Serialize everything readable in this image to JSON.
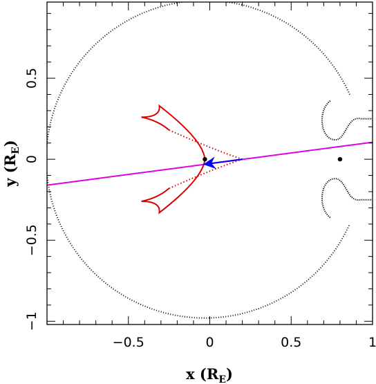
{
  "chart_data": {
    "type": "scatter",
    "xlabel_main": "x (R",
    "xlabel_sub": "E",
    "xlabel_close": ")",
    "ylabel_main": "y (R",
    "ylabel_sub": "E",
    "ylabel_close": ")",
    "xlim": [
      -1.0,
      1.0
    ],
    "ylim": [
      -1.02,
      0.97
    ],
    "x_ticks": [
      -0.5,
      0,
      0.5,
      1
    ],
    "x_tick_labels": [
      "−0.5",
      "0",
      "0.5",
      "1"
    ],
    "y_ticks": [
      -1,
      -0.5,
      0,
      0.5
    ],
    "y_tick_labels": [
      "−1",
      "−0.5",
      "0",
      "0.5"
    ],
    "lenses": [
      {
        "x": -0.03,
        "y": 0.0
      },
      {
        "x": 0.8,
        "y": 0.0
      }
    ],
    "source_trajectory": {
      "x_start": -1.0,
      "y_start": -0.16,
      "x_end": 1.0,
      "y_end": 0.105
    },
    "source_motion": {
      "x_start": 0.2,
      "y_start": 0.0,
      "x_end": -0.04,
      "y_end": -0.032
    },
    "caustic_cusps": [
      {
        "x": 0.2,
        "y": 0.0
      },
      {
        "x": -0.42,
        "y": 0.26
      },
      {
        "x": -0.31,
        "y": 0.33
      },
      {
        "x": -0.42,
        "y": -0.26
      },
      {
        "x": -0.31,
        "y": -0.33
      },
      {
        "x": -0.03,
        "y": 0.0
      }
    ],
    "colors": {
      "trajectory": "#e000e0",
      "motion_arrow": "#0000ff",
      "caustic": "#dd0000",
      "critical_curve": "#000000"
    }
  }
}
